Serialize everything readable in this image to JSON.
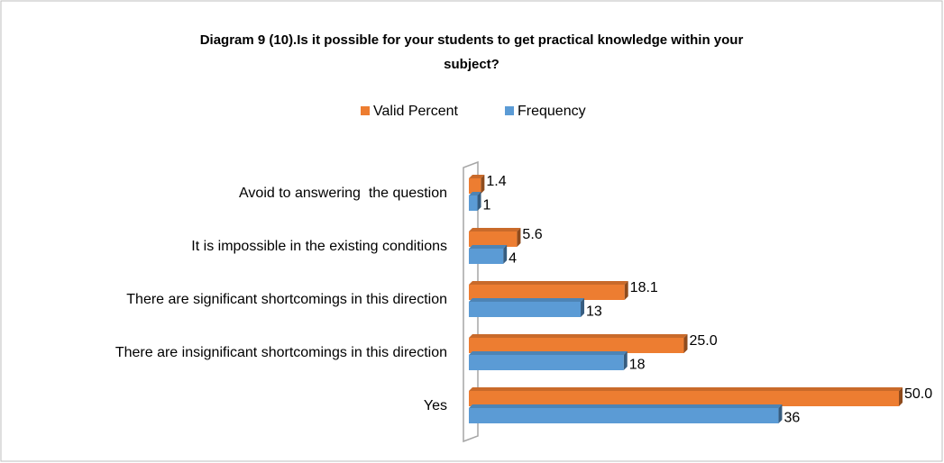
{
  "chart_data": {
    "type": "bar",
    "orientation": "horizontal",
    "title": [
      "Diagram 9 (10).Is it possible for your students to get practical knowledge within your",
      "subject?"
    ],
    "categories": [
      "Avoid to answering  the question",
      "It is impossible in the existing conditions",
      "There are significant shortcomings in this direction",
      "There are insignificant shortcomings in this direction",
      "Yes"
    ],
    "series": [
      {
        "name": "Valid Percent",
        "color": "#ED7D31",
        "values": [
          1.4,
          5.6,
          18.1,
          25.0,
          50.0
        ],
        "value_labels": [
          "1.4",
          "5.6",
          "18.1",
          "25.0",
          "50.0"
        ]
      },
      {
        "name": "Frequency",
        "color": "#5B9BD5",
        "values": [
          1,
          4,
          13,
          18,
          36
        ]
      }
    ],
    "xlim": [
      0,
      50
    ],
    "legend": "top"
  }
}
